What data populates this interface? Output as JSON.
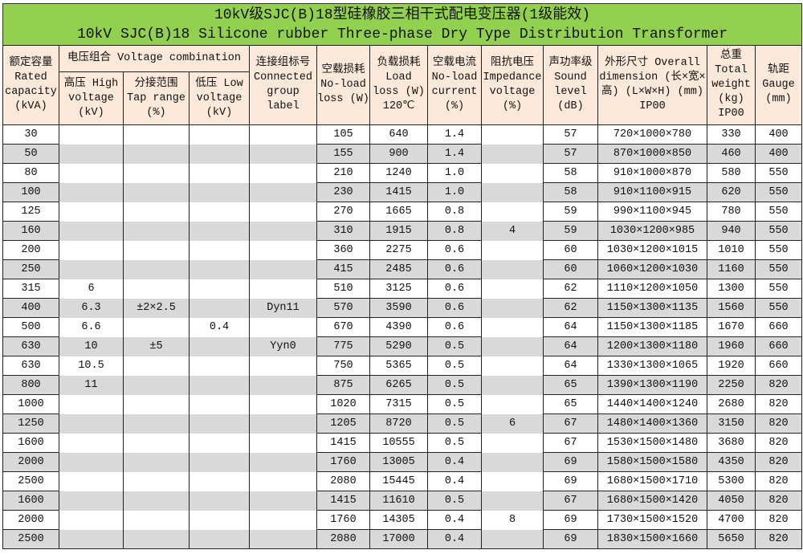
{
  "title": {
    "line1": "10kV级SJC(B)18型硅橡胶三相干式配电变压器(1级能效)",
    "line2": "10kV SJC(B)18 Silicone rubber Three-phase Dry Type Distribution Transformer"
  },
  "headers": {
    "rated_capacity": "额定容量 Rated capacity (kVA)",
    "voltage_combination": "电压组合 Voltage combination",
    "high_voltage": "高压 High voltage (kV)",
    "tap_range": "分接范围 Tap range (%)",
    "low_voltage": "低压 Low voltage (kV)",
    "connected_group": "连接组标号 Connected group label",
    "no_load_loss": "空载损耗 No-load loss (W)",
    "load_loss": "负载损耗 Load loss (W) 120℃",
    "no_load_current": "空载电流 No-load current (%)",
    "impedance_voltage": "阻抗电压 Impedance voltage (%)",
    "sound_level": "声功率级 Sound level (dB)",
    "overall_dimension": "外形尺寸 Overall dimension (长×宽×高) (L×W×H) (mm) IP00",
    "total_weight": "总重 Total weight (kg) IP00",
    "gauge": "轨距 Gauge (mm)"
  },
  "rows": [
    [
      "30",
      "",
      "",
      "",
      "",
      "105",
      "640",
      "1.4",
      "",
      "57",
      "720×1000×780",
      "330",
      "400"
    ],
    [
      "50",
      "",
      "",
      "",
      "",
      "155",
      "900",
      "1.4",
      "",
      "57",
      "870×1000×850",
      "460",
      "400"
    ],
    [
      "80",
      "",
      "",
      "",
      "",
      "210",
      "1240",
      "1.0",
      "",
      "58",
      "910×1000×870",
      "580",
      "550"
    ],
    [
      "100",
      "",
      "",
      "",
      "",
      "230",
      "1415",
      "1.0",
      "",
      "58",
      "910×1100×915",
      "620",
      "550"
    ],
    [
      "125",
      "",
      "",
      "",
      "",
      "270",
      "1665",
      "0.8",
      "",
      "59",
      "990×1100×945",
      "780",
      "550"
    ],
    [
      "160",
      "",
      "",
      "",
      "",
      "310",
      "1915",
      "0.8",
      "4",
      "59",
      "1030×1200×985",
      "940",
      "550"
    ],
    [
      "200",
      "",
      "",
      "",
      "",
      "360",
      "2275",
      "0.6",
      "",
      "60",
      "1030×1200×1015",
      "1010",
      "550"
    ],
    [
      "250",
      "",
      "",
      "",
      "",
      "415",
      "2485",
      "0.6",
      "",
      "60",
      "1060×1200×1030",
      "1160",
      "550"
    ],
    [
      "315",
      "6",
      "",
      "",
      "",
      "510",
      "3125",
      "0.6",
      "",
      "62",
      "1110×1200×1050",
      "1300",
      "550"
    ],
    [
      "400",
      "6.3",
      "±2×2.5",
      "",
      "Dyn11",
      "570",
      "3590",
      "0.6",
      "",
      "62",
      "1150×1300×1135",
      "1560",
      "550"
    ],
    [
      "500",
      "6.6",
      "",
      "0.4",
      "",
      "670",
      "4390",
      "0.6",
      "",
      "64",
      "1150×1300×1185",
      "1670",
      "660"
    ],
    [
      "630",
      "10",
      "±5",
      "",
      "Yyn0",
      "775",
      "5290",
      "0.5",
      "",
      "64",
      "1200×1300×1180",
      "1960",
      "660"
    ],
    [
      "630",
      "10.5",
      "",
      "",
      "",
      "750",
      "5365",
      "0.5",
      "",
      "64",
      "1330×1300×1065",
      "1920",
      "660"
    ],
    [
      "800",
      "11",
      "",
      "",
      "",
      "875",
      "6265",
      "0.5",
      "",
      "65",
      "1390×1300×1190",
      "2250",
      "820"
    ],
    [
      "1000",
      "",
      "",
      "",
      "",
      "1020",
      "7315",
      "0.5",
      "",
      "65",
      "1440×1400×1240",
      "2680",
      "820"
    ],
    [
      "1250",
      "",
      "",
      "",
      "",
      "1205",
      "8720",
      "0.5",
      "6",
      "67",
      "1480×1400×1360",
      "3150",
      "820"
    ],
    [
      "1600",
      "",
      "",
      "",
      "",
      "1415",
      "10555",
      "0.5",
      "",
      "67",
      "1530×1500×1480",
      "3680",
      "820"
    ],
    [
      "2000",
      "",
      "",
      "",
      "",
      "1760",
      "13005",
      "0.4",
      "",
      "69",
      "1580×1500×1580",
      "4350",
      "820"
    ],
    [
      "2500",
      "",
      "",
      "",
      "",
      "2080",
      "15445",
      "0.4",
      "",
      "69",
      "1680×1500×1710",
      "5300",
      "820"
    ],
    [
      "1600",
      "",
      "",
      "",
      "",
      "1415",
      "11610",
      "0.5",
      "",
      "67",
      "1680×1500×1420",
      "4050",
      "820"
    ],
    [
      "2000",
      "",
      "",
      "",
      "",
      "1760",
      "14305",
      "0.4",
      "8",
      "69",
      "1730×1500×1520",
      "4700",
      "820"
    ],
    [
      "2500",
      "",
      "",
      "",
      "",
      "2080",
      "17000",
      "0.4",
      "",
      "69",
      "1830×1500×1660",
      "5650",
      "820"
    ]
  ],
  "colors": {
    "title_bg": "#92d050",
    "header_bg": "#fde9d9",
    "stripe": "#d9d9d9"
  }
}
